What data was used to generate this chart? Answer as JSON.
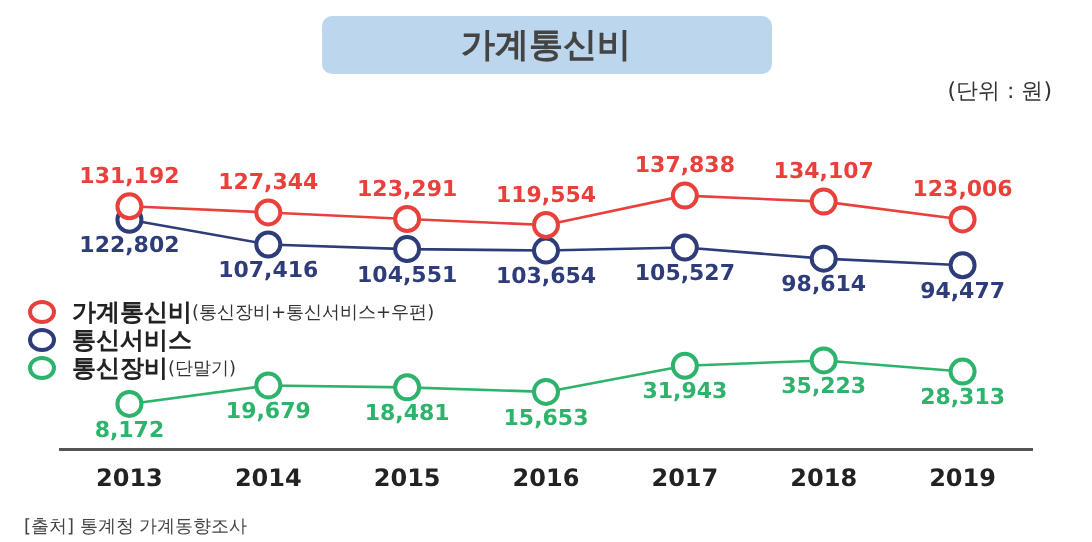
{
  "chart_data": {
    "type": "line",
    "title": "가계통신비",
    "subtitle": "(단위 : 원)",
    "categories": [
      "2013",
      "2014",
      "2015",
      "2016",
      "2017",
      "2018",
      "2019"
    ],
    "series": [
      {
        "name": "가계통신비(통신장비+통신서비스+우편)",
        "color": "#e8413c",
        "values": [
          131192,
          127344,
          123291,
          119554,
          137838,
          134107,
          123006
        ],
        "value_labels": [
          "131,192",
          "127,344",
          "123,291",
          "119,554",
          "137,838",
          "134,107",
          "123,006"
        ]
      },
      {
        "name": "통신서비스",
        "color": "#2e3d7a",
        "values": [
          122802,
          107416,
          104551,
          103654,
          105527,
          98614,
          94477
        ],
        "value_labels": [
          "122,802",
          "107,416",
          "104,551",
          "103,654",
          "105,527",
          "98,614",
          "94,477"
        ]
      },
      {
        "name": "통신장비(단말기)",
        "color": "#2db36b",
        "values": [
          8172,
          19679,
          18481,
          15653,
          31943,
          35223,
          28313
        ],
        "value_labels": [
          "8,172",
          "19,679",
          "18,481",
          "15,653",
          "31,943",
          "35,223",
          "28,313"
        ]
      }
    ],
    "marker": "circle",
    "grid": false,
    "legend": "left",
    "annotations": [
      "[출처] 통계청 가계동향조사"
    ]
  }
}
